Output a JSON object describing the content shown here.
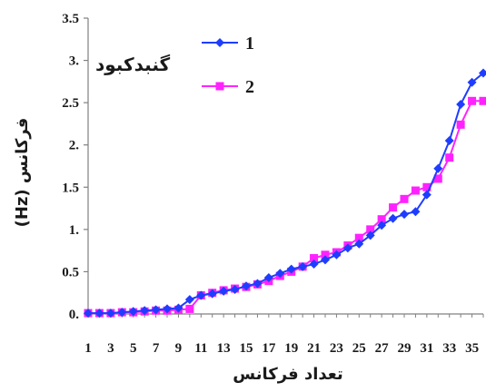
{
  "chart_data": {
    "type": "line",
    "title": "گنبدکبود",
    "xlabel": "تعداد فرکانس",
    "ylabel": "(Hz) فرکانس",
    "ylim": [
      0,
      3.5
    ],
    "xlim": [
      1,
      36
    ],
    "grid": false,
    "legend_position": "top-left",
    "x_ticks": [
      "1",
      "3",
      "5",
      "7",
      "9",
      "11",
      "13",
      "15",
      "17",
      "19",
      "21",
      "23",
      "25",
      "27",
      "29",
      "31",
      "33",
      "35"
    ],
    "y_ticks": [
      "0.",
      "0.5",
      "1.",
      "1.5",
      "2.",
      "2.5",
      "3.",
      "3.5"
    ],
    "x": [
      1,
      2,
      3,
      4,
      5,
      6,
      7,
      8,
      9,
      10,
      11,
      12,
      13,
      14,
      15,
      16,
      17,
      18,
      19,
      20,
      21,
      22,
      23,
      24,
      25,
      26,
      27,
      28,
      29,
      30,
      31,
      32,
      33,
      34,
      35,
      36
    ],
    "series": [
      {
        "name": "1",
        "color": "#1f3dff",
        "marker": "diamond",
        "values": [
          0.01,
          0.01,
          0.01,
          0.02,
          0.03,
          0.04,
          0.05,
          0.06,
          0.07,
          0.17,
          0.22,
          0.24,
          0.27,
          0.29,
          0.33,
          0.36,
          0.43,
          0.48,
          0.53,
          0.56,
          0.59,
          0.64,
          0.7,
          0.78,
          0.83,
          0.93,
          1.05,
          1.13,
          1.18,
          1.21,
          1.41,
          1.72,
          2.05,
          2.48,
          2.74,
          2.85
        ]
      },
      {
        "name": "2",
        "color": "#ff22ff",
        "marker": "square",
        "values": [
          0.01,
          0.01,
          0.01,
          0.02,
          0.02,
          0.03,
          0.04,
          0.04,
          0.05,
          0.06,
          0.22,
          0.25,
          0.28,
          0.3,
          0.32,
          0.35,
          0.39,
          0.45,
          0.5,
          0.56,
          0.66,
          0.7,
          0.73,
          0.81,
          0.9,
          1.0,
          1.12,
          1.26,
          1.36,
          1.46,
          1.5,
          1.6,
          1.85,
          2.24,
          2.52,
          2.52
        ]
      }
    ]
  }
}
